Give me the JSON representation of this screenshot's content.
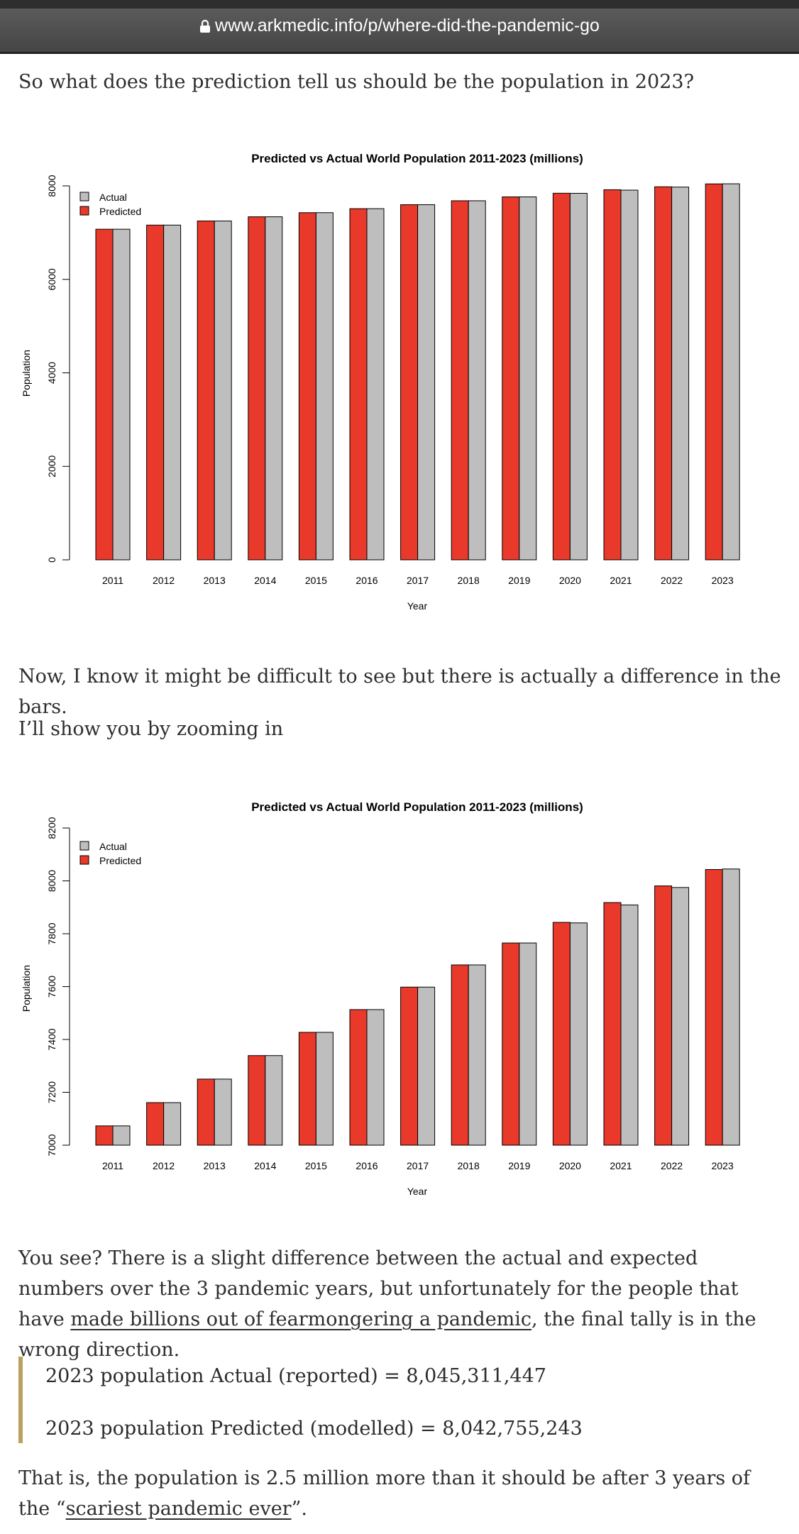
{
  "browser": {
    "url": "www.arkmedic.info/p/where-did-the-pandemic-go"
  },
  "article": {
    "p1": "So what does the prediction tell us should be the population in 2023?",
    "p2": "Now, I know it might be difficult to see but there is actually a difference in the bars.",
    "p3": "I’ll show you by zooming in",
    "p4": {
      "text_a": "You see? There is a slight difference between the actual and expected numbers over the 3 pandemic years, but unfortunately for the people that have ",
      "link": "made billions out of fearmongering a pandemic",
      "text_b": ", the final tally is in the wrong direction."
    },
    "quote": {
      "line1": "2023 population Actual (reported) = 8,045,311,447",
      "line2": "2023 population Predicted (modelled) = 8,042,755,243"
    },
    "p5": {
      "text_a": "That is, the population is 2.5 million more than it should be after 3 years of the “",
      "link": "scariest pandemic ever",
      "text_b": "”."
    }
  },
  "colors": {
    "predicted": "#e8392a",
    "actual": "#bebebe"
  },
  "chart_data": [
    {
      "type": "bar",
      "title": "Predicted vs Actual World Population 2011-2023 (millions)",
      "xlabel": "Year",
      "ylabel": "Population",
      "ylim": [
        0,
        8000
      ],
      "yticks": [
        0,
        2000,
        4000,
        6000,
        8000
      ],
      "categories": [
        "2011",
        "2012",
        "2013",
        "2014",
        "2015",
        "2016",
        "2017",
        "2018",
        "2019",
        "2020",
        "2021",
        "2022",
        "2023"
      ],
      "series": [
        {
          "name": "Predicted",
          "values": [
            7073,
            7161,
            7250,
            7339,
            7427,
            7513,
            7598,
            7682,
            7765,
            7843,
            7918,
            7981,
            8043
          ]
        },
        {
          "name": "Actual",
          "values": [
            7073,
            7161,
            7250,
            7339,
            7427,
            7513,
            7598,
            7682,
            7765,
            7841,
            7909,
            7975,
            8045
          ]
        }
      ],
      "legend": {
        "position": "top-left",
        "entries": [
          "Actual",
          "Predicted"
        ]
      },
      "grid": false
    },
    {
      "type": "bar",
      "title": "Predicted vs Actual World Population 2011-2023 (millions)",
      "xlabel": "Year",
      "ylabel": "Population",
      "ylim": [
        7000,
        8200
      ],
      "yticks": [
        7000,
        7200,
        7400,
        7600,
        7800,
        8000,
        8200
      ],
      "categories": [
        "2011",
        "2012",
        "2013",
        "2014",
        "2015",
        "2016",
        "2017",
        "2018",
        "2019",
        "2020",
        "2021",
        "2022",
        "2023"
      ],
      "series": [
        {
          "name": "Predicted",
          "values": [
            7073,
            7161,
            7250,
            7339,
            7427,
            7513,
            7598,
            7682,
            7765,
            7843,
            7918,
            7981,
            8043
          ]
        },
        {
          "name": "Actual",
          "values": [
            7073,
            7161,
            7250,
            7339,
            7427,
            7513,
            7598,
            7682,
            7765,
            7841,
            7909,
            7975,
            8045
          ]
        }
      ],
      "legend": {
        "position": "top-left",
        "entries": [
          "Actual",
          "Predicted"
        ]
      },
      "grid": false
    }
  ]
}
